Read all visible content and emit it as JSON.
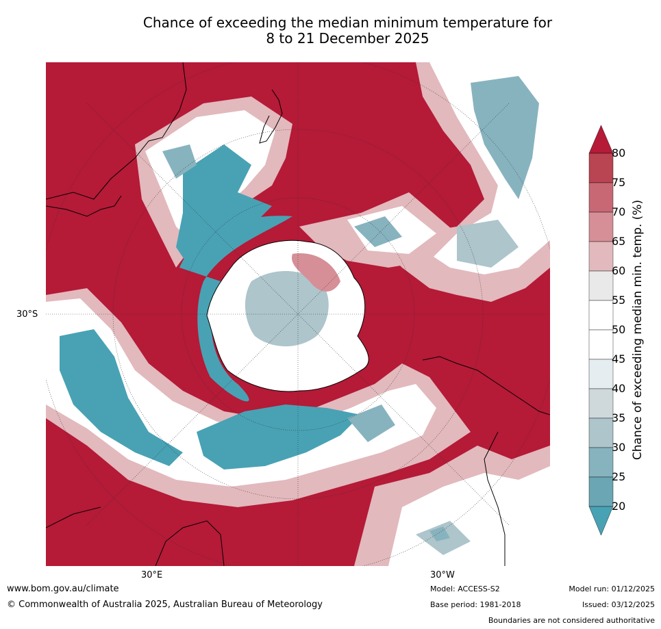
{
  "title_line1": "Chance of exceeding the median minimum temperature for",
  "title_line2": "8 to 21 December 2025",
  "map": {
    "latitude_label": "30°S",
    "longitude_labels": [
      "30°E",
      "30°W"
    ]
  },
  "colorbar": {
    "title": "Chance of exceeding median min. temp. (%)",
    "ticks": [
      "80",
      "75",
      "70",
      "65",
      "60",
      "55",
      "50",
      "45",
      "40",
      "35",
      "30",
      "25",
      "20"
    ],
    "colors": {
      "c80_up": "#b51a37",
      "c75_80": "#b94552",
      "c70_75": "#c86874",
      "c65_70": "#d68f97",
      "c60_65": "#e2b9bd",
      "c55_60": "#e9e9e9",
      "c50_55": "#ffffff",
      "c45_50": "#ffffff",
      "c40_45": "#e6edf0",
      "c35_40": "#cfd9dc",
      "c30_35": "#adc5cb",
      "c25_30": "#87b3bf",
      "c20_25": "#6aa6b3",
      "c20_down": "#48a2b4"
    }
  },
  "footer": {
    "website": "www.bom.gov.au/climate",
    "copyright": "© Commonwealth of Australia 2025, Australian Bureau of Meteorology",
    "model": "Model: ACCESS-S2",
    "base_period": "Base period: 1981-2018",
    "model_run": "Model run: 01/12/2025",
    "issued": "Issued: 03/12/2025",
    "disclaimer": "Boundaries are not considered authoritative"
  }
}
